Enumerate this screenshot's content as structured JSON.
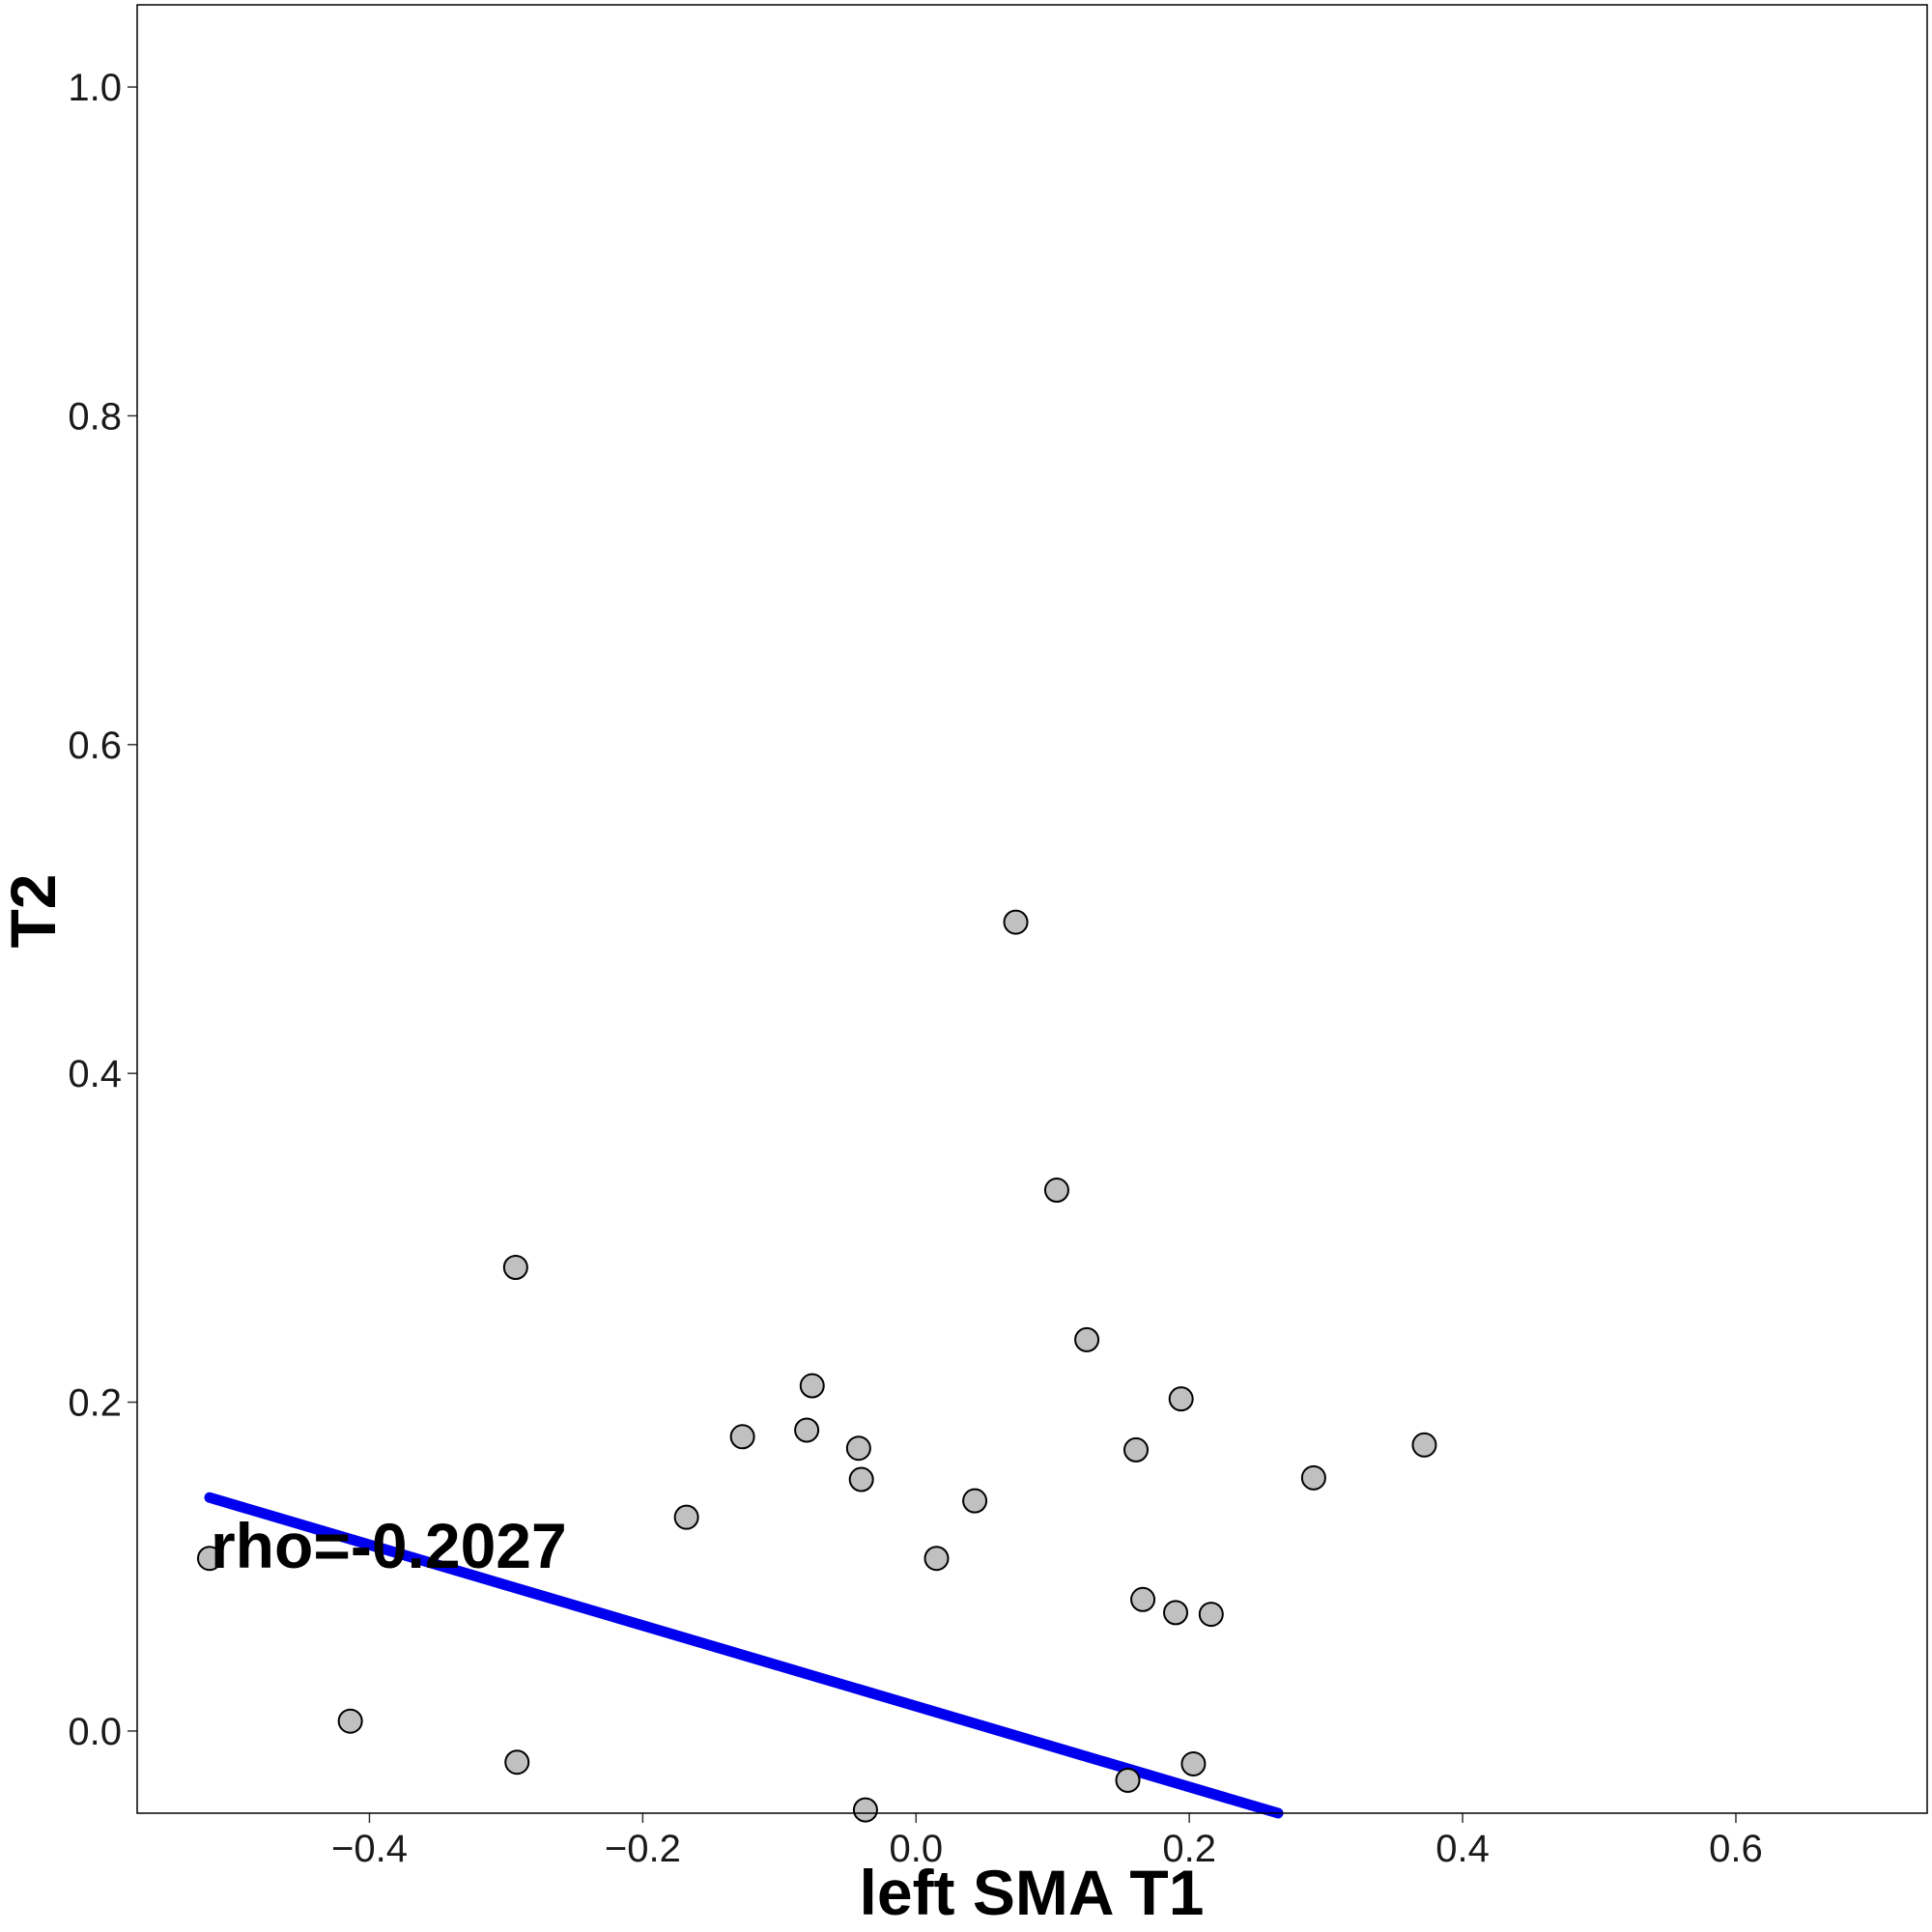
{
  "chart_data": {
    "type": "scatter",
    "title": "",
    "xlabel": "left SMA T1",
    "ylabel": "T2",
    "xlim": [
      -0.57,
      0.74
    ],
    "ylim": [
      -0.05,
      1.05
    ],
    "xticks": [
      -0.4,
      -0.2,
      0.0,
      0.2,
      0.4,
      0.6
    ],
    "xtick_labels": [
      "−0.4",
      "−0.2",
      "0.0",
      "0.2",
      "0.4",
      "0.6"
    ],
    "yticks": [
      0.0,
      0.2,
      0.4,
      0.6,
      0.8,
      1.0
    ],
    "ytick_labels": [
      "0.0",
      "0.2",
      "0.4",
      "0.6",
      "0.8",
      "1.0"
    ],
    "grid": false,
    "points": {
      "x": [
        -0.517,
        -0.414,
        -0.292,
        -0.293,
        -0.168,
        -0.127,
        -0.08,
        -0.076,
        -0.042,
        -0.04,
        -0.037,
        0.015,
        0.043,
        0.073,
        0.103,
        0.125,
        0.155,
        0.161,
        0.166,
        0.19,
        0.194,
        0.203,
        0.216,
        0.291,
        0.372
      ],
      "y": [
        0.105,
        0.006,
        -0.019,
        0.282,
        0.13,
        0.179,
        0.183,
        0.21,
        0.172,
        0.153,
        -0.048,
        0.105,
        0.14,
        0.492,
        0.329,
        0.238,
        -0.03,
        0.171,
        0.08,
        0.072,
        0.202,
        -0.02,
        0.071,
        0.154,
        0.174
      ]
    },
    "fit_line": {
      "x": [
        -0.517,
        0.265
      ],
      "y": [
        0.142,
        -0.05
      ]
    },
    "annotation": "rho=-0.2027",
    "colors": {
      "point_fill": "#c0c0c0",
      "point_stroke": "#000000",
      "fit_line": "#0000ee"
    }
  }
}
